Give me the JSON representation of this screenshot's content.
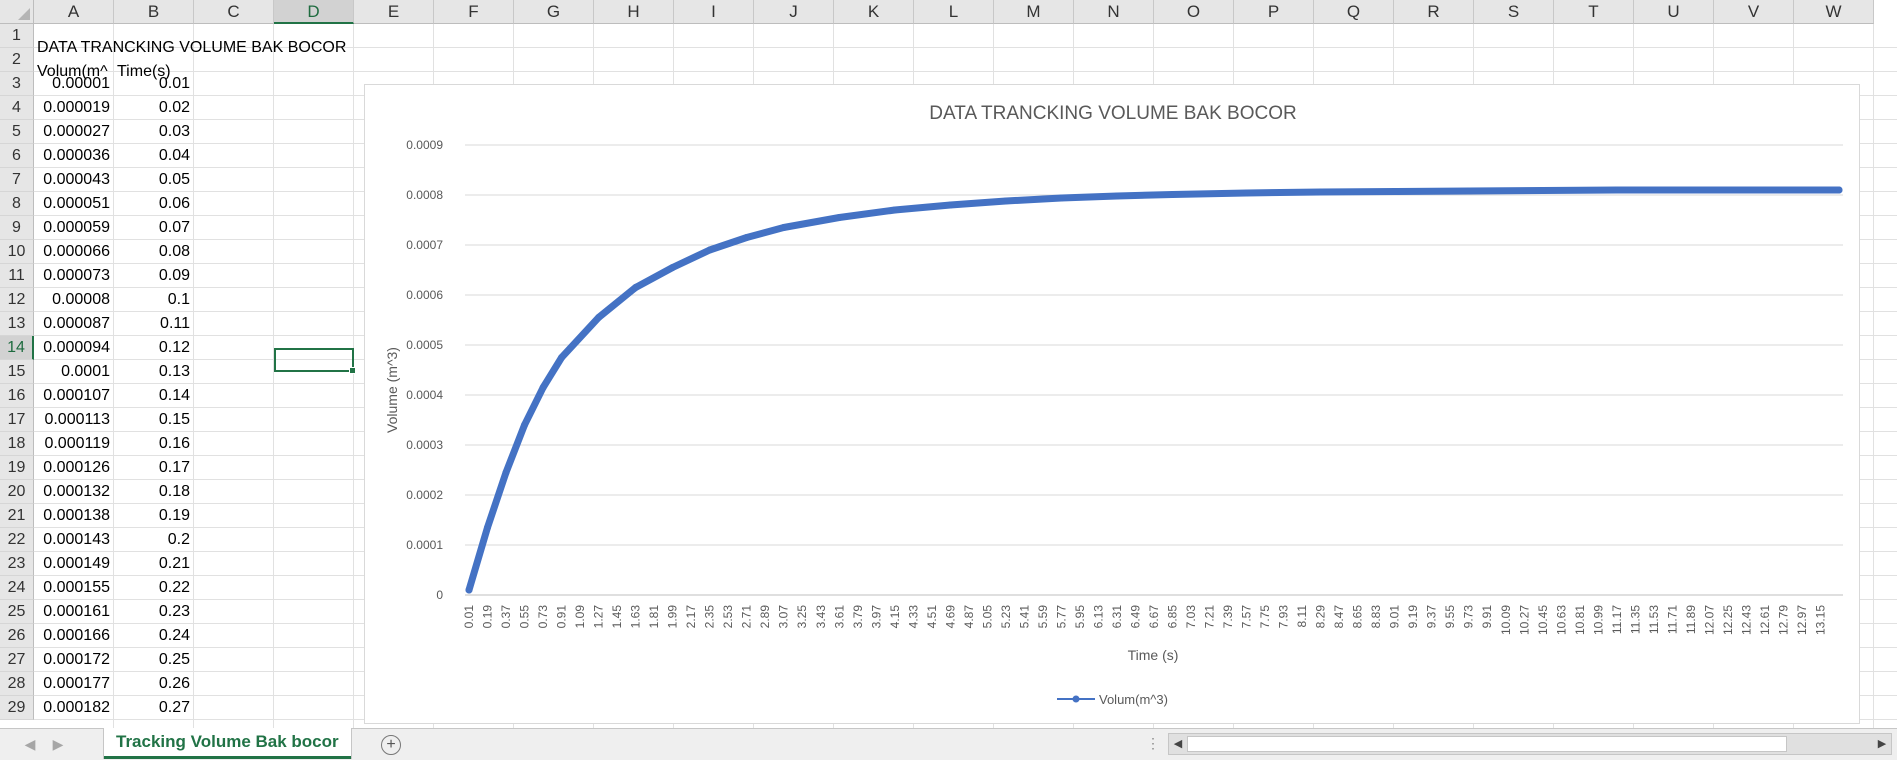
{
  "columns": [
    "A",
    "B",
    "C",
    "D",
    "E",
    "F",
    "G",
    "H",
    "I",
    "J",
    "K",
    "L",
    "M",
    "N",
    "O",
    "P",
    "Q",
    "R",
    "S",
    "T",
    "U",
    "V",
    "W"
  ],
  "active_column": "D",
  "active_row": 14,
  "cells": {
    "A1": "DATA TRANCKING VOLUME BAK BOCOR",
    "A2": "Volum(m^",
    "B2": "Time(s)"
  },
  "rows": [
    {
      "n": 3,
      "a": "0.00001",
      "b": "0.01"
    },
    {
      "n": 4,
      "a": "0.000019",
      "b": "0.02"
    },
    {
      "n": 5,
      "a": "0.000027",
      "b": "0.03"
    },
    {
      "n": 6,
      "a": "0.000036",
      "b": "0.04"
    },
    {
      "n": 7,
      "a": "0.000043",
      "b": "0.05"
    },
    {
      "n": 8,
      "a": "0.000051",
      "b": "0.06"
    },
    {
      "n": 9,
      "a": "0.000059",
      "b": "0.07"
    },
    {
      "n": 10,
      "a": "0.000066",
      "b": "0.08"
    },
    {
      "n": 11,
      "a": "0.000073",
      "b": "0.09"
    },
    {
      "n": 12,
      "a": "0.00008",
      "b": "0.1"
    },
    {
      "n": 13,
      "a": "0.000087",
      "b": "0.11"
    },
    {
      "n": 14,
      "a": "0.000094",
      "b": "0.12"
    },
    {
      "n": 15,
      "a": "0.0001",
      "b": "0.13"
    },
    {
      "n": 16,
      "a": "0.000107",
      "b": "0.14"
    },
    {
      "n": 17,
      "a": "0.000113",
      "b": "0.15"
    },
    {
      "n": 18,
      "a": "0.000119",
      "b": "0.16"
    },
    {
      "n": 19,
      "a": "0.000126",
      "b": "0.17"
    },
    {
      "n": 20,
      "a": "0.000132",
      "b": "0.18"
    },
    {
      "n": 21,
      "a": "0.000138",
      "b": "0.19"
    },
    {
      "n": 22,
      "a": "0.000143",
      "b": "0.2"
    },
    {
      "n": 23,
      "a": "0.000149",
      "b": "0.21"
    },
    {
      "n": 24,
      "a": "0.000155",
      "b": "0.22"
    },
    {
      "n": 25,
      "a": "0.000161",
      "b": "0.23"
    },
    {
      "n": 26,
      "a": "0.000166",
      "b": "0.24"
    },
    {
      "n": 27,
      "a": "0.000172",
      "b": "0.25"
    },
    {
      "n": 28,
      "a": "0.000177",
      "b": "0.26"
    },
    {
      "n": 29,
      "a": "0.000182",
      "b": "0.27"
    }
  ],
  "sheet_tab": "Tracking Volume Bak bocor",
  "chart_data": {
    "type": "line",
    "title": "DATA TRANCKING VOLUME BAK BOCOR",
    "xlabel": "Time (s)",
    "ylabel": "Volume (m^3)",
    "legend": "bottom",
    "series": [
      {
        "name": "Volum(m^3)",
        "color": "#4472C4",
        "x": [
          0.01,
          0.19,
          0.37,
          0.55,
          0.73,
          0.91,
          1.27,
          1.63,
          1.99,
          2.35,
          2.71,
          3.07,
          3.61,
          4.15,
          4.69,
          5.23,
          5.77,
          6.31,
          6.85,
          7.57,
          8.29,
          9.01,
          9.73,
          10.45,
          11.17,
          11.89,
          12.61,
          13.33
        ],
        "y": [
          1e-05,
          0.000135,
          0.000245,
          0.00034,
          0.000415,
          0.000475,
          0.000555,
          0.000615,
          0.000655,
          0.00069,
          0.000715,
          0.000735,
          0.000755,
          0.00077,
          0.00078,
          0.000788,
          0.000794,
          0.000798,
          0.000801,
          0.000804,
          0.000806,
          0.000807,
          0.000808,
          0.000809,
          0.00081,
          0.00081,
          0.00081,
          0.00081
        ]
      }
    ],
    "ylim": [
      0,
      0.0009
    ],
    "yticks": [
      "0",
      "0.0001",
      "0.0002",
      "0.0003",
      "0.0004",
      "0.0005",
      "0.0006",
      "0.0007",
      "0.0008",
      "0.0009"
    ],
    "xticks": [
      "0.01",
      "0.19",
      "0.37",
      "0.55",
      "0.73",
      "0.91",
      "1.09",
      "1.27",
      "1.45",
      "1.63",
      "1.81",
      "1.99",
      "2.17",
      "2.35",
      "2.53",
      "2.71",
      "2.89",
      "3.07",
      "3.25",
      "3.43",
      "3.61",
      "3.79",
      "3.97",
      "4.15",
      "4.33",
      "4.51",
      "4.69",
      "4.87",
      "5.05",
      "5.23",
      "5.41",
      "5.59",
      "5.77",
      "5.95",
      "6.13",
      "6.31",
      "6.49",
      "6.67",
      "6.85",
      "7.03",
      "7.21",
      "7.39",
      "7.57",
      "7.75",
      "7.93",
      "8.11",
      "8.29",
      "8.47",
      "8.65",
      "8.83",
      "9.01",
      "9.19",
      "9.37",
      "9.55",
      "9.73",
      "9.91",
      "10.09",
      "10.27",
      "10.45",
      "10.63",
      "10.81",
      "10.99",
      "11.17",
      "11.35",
      "11.53",
      "11.71",
      "11.89",
      "12.07",
      "12.25",
      "12.43",
      "12.61",
      "12.79",
      "12.97",
      "13.15"
    ],
    "gridlines": true
  }
}
